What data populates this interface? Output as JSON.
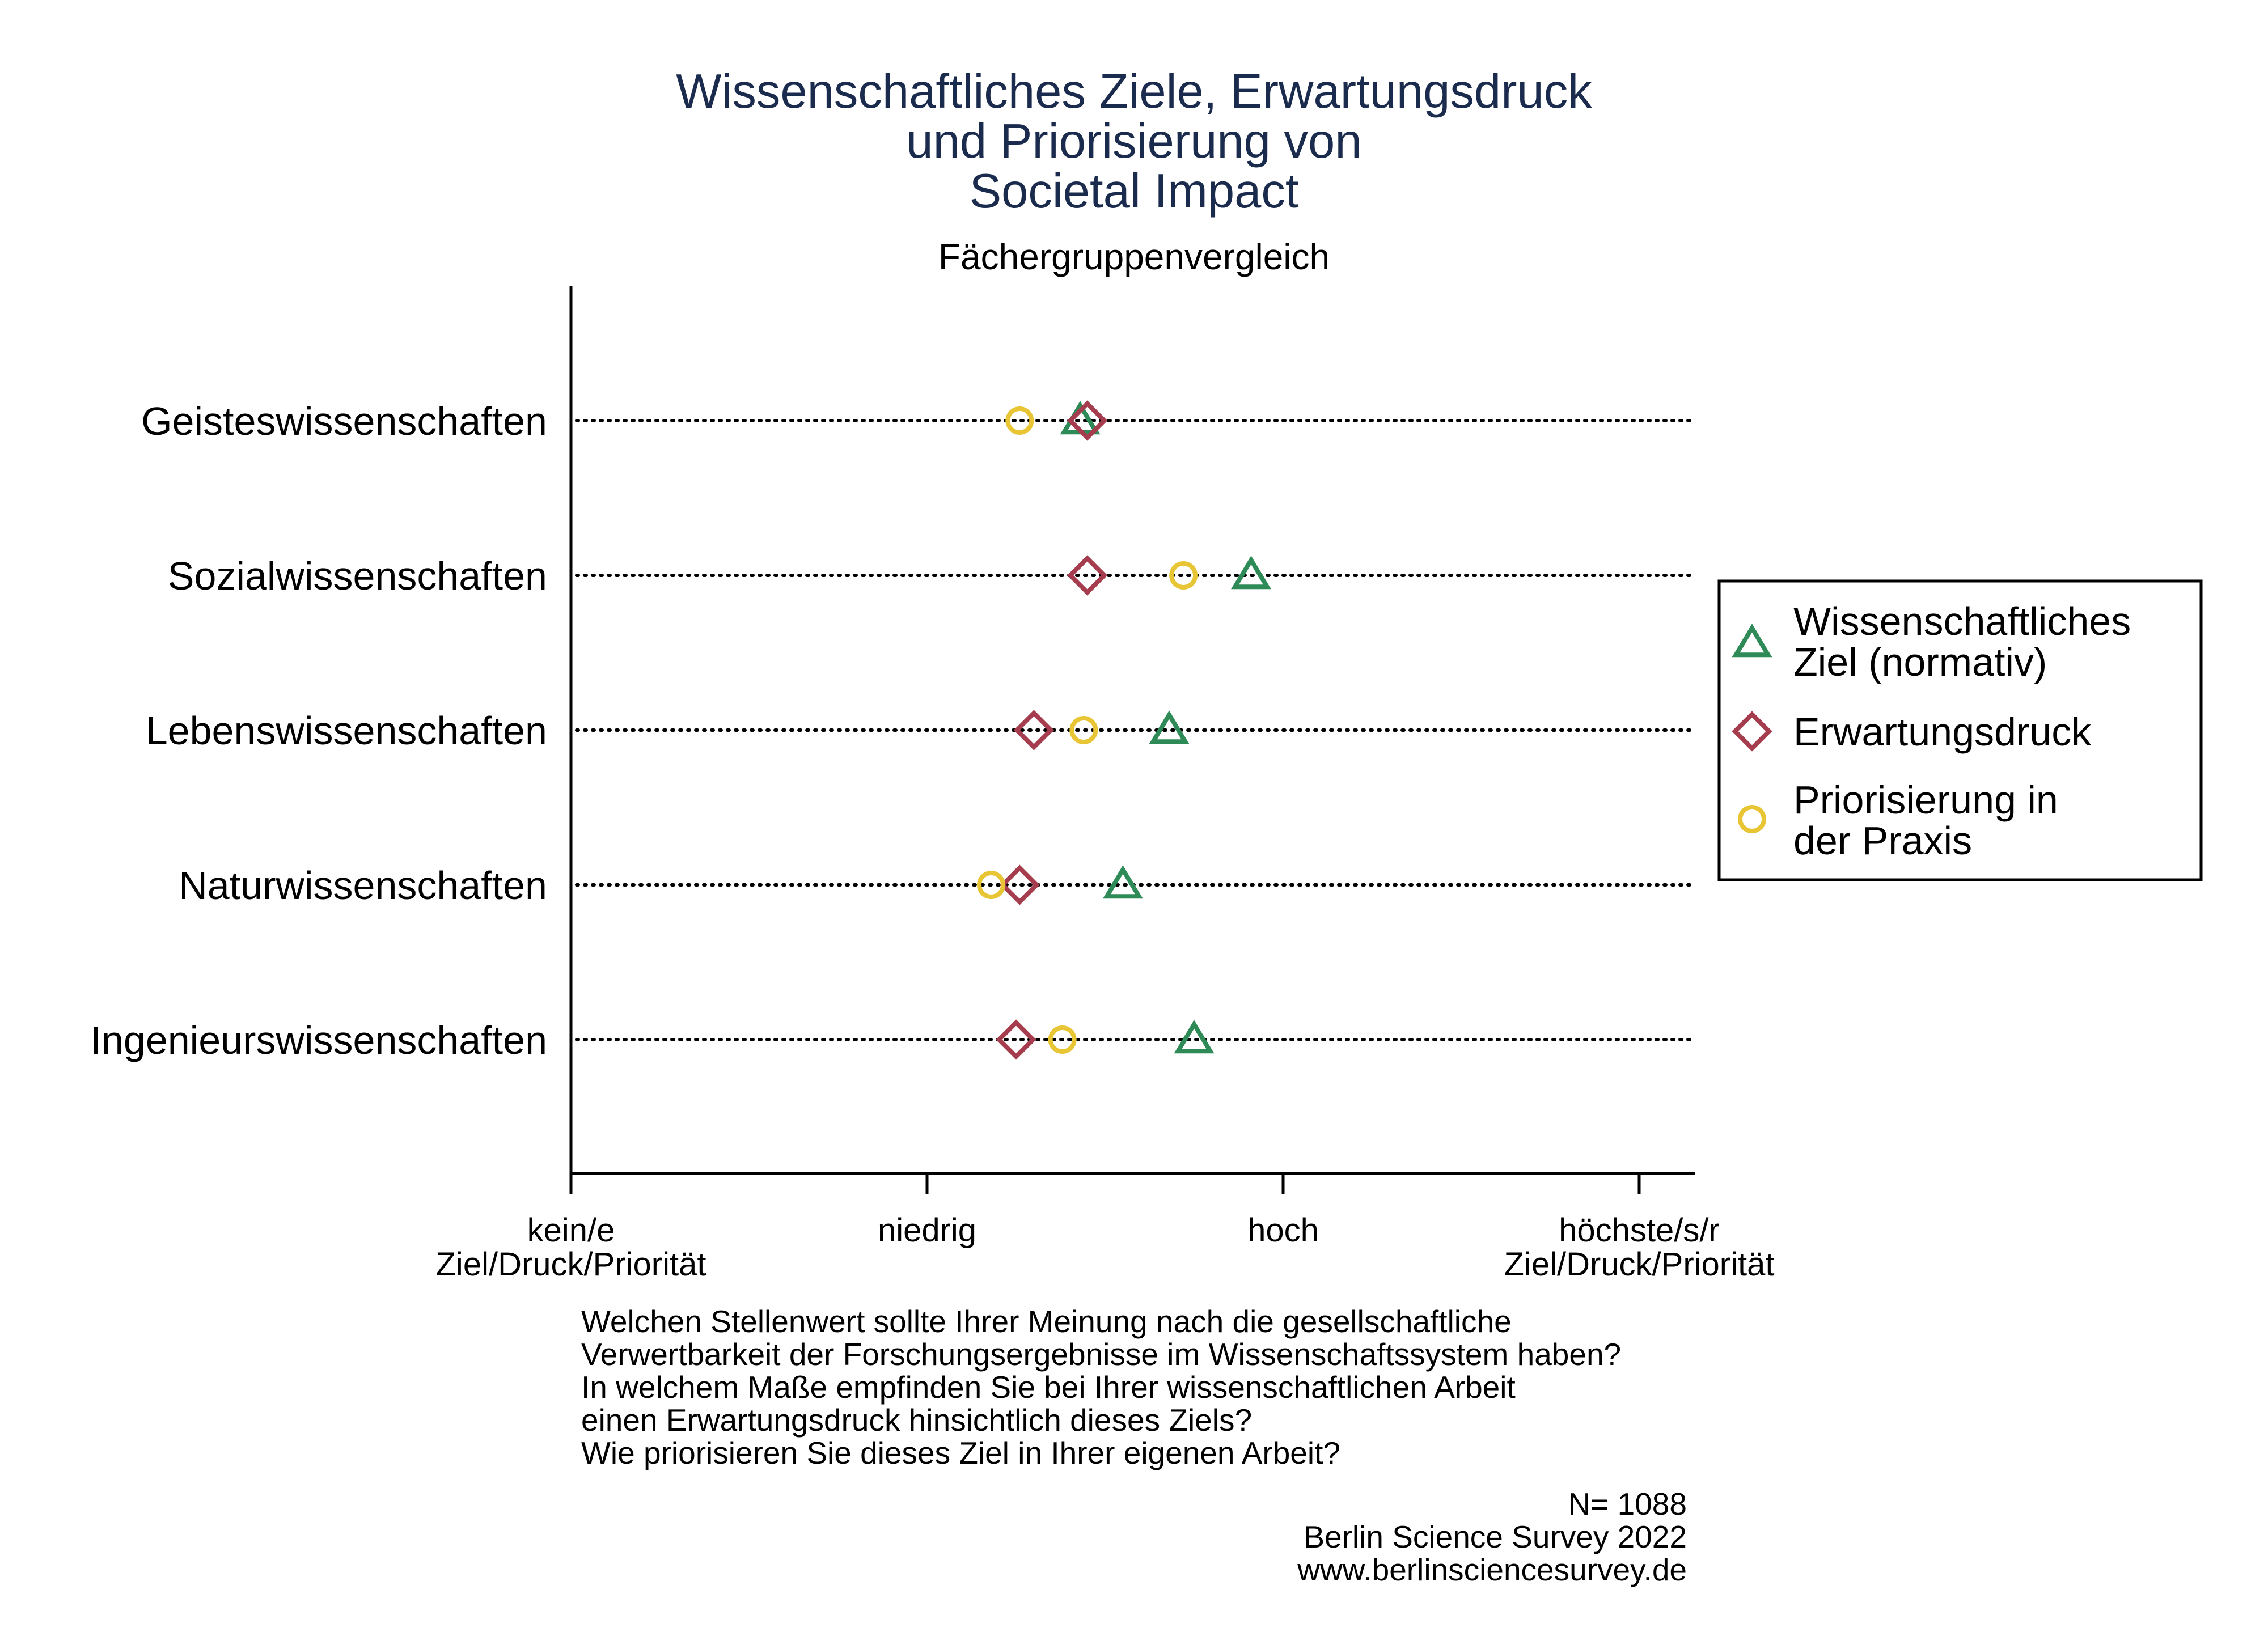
{
  "chart_data": {
    "type": "scatter",
    "title_lines": [
      "Wissenschaftliches Ziele, Erwartungsdruck",
      "und Priorisierung von",
      "Societal Impact"
    ],
    "subtitle": "Fächergruppenvergleich",
    "categories": [
      "Geisteswissenschaften",
      "Sozialwissenschaften",
      "Lebenswissenschaften",
      "Naturwissenschaften",
      "Ingenieurswissenschaften"
    ],
    "x_ticks": [
      {
        "value": 0,
        "lines": [
          "kein/e",
          "Ziel/Druck/Priorität"
        ]
      },
      {
        "value": 1,
        "lines": [
          "niedrig"
        ]
      },
      {
        "value": 2,
        "lines": [
          "hoch"
        ]
      },
      {
        "value": 3,
        "lines": [
          "höchste/s/r",
          "Ziel/Druck/Priorität"
        ]
      }
    ],
    "xlim": [
      0,
      3.16
    ],
    "grid": "dotted horizontal line per category",
    "legend_position": "right",
    "series": [
      {
        "name_lines": [
          "Wissenschaftliches",
          "Ziel (normativ)"
        ],
        "marker": "triangle",
        "color": "#2e8b57",
        "values": [
          1.43,
          1.91,
          1.68,
          1.55,
          1.75
        ]
      },
      {
        "name_lines": [
          "Erwartungsdruck"
        ],
        "marker": "diamond",
        "color": "#a63d4f",
        "values": [
          1.45,
          1.45,
          1.3,
          1.26,
          1.25
        ]
      },
      {
        "name_lines": [
          "Priorisierung in",
          "der Praxis"
        ],
        "marker": "circle",
        "color": "#e8c534",
        "values": [
          1.26,
          1.72,
          1.44,
          1.18,
          1.38
        ]
      }
    ],
    "question_lines": [
      "Welchen Stellenwert sollte Ihrer Meinung nach die gesellschaftliche",
      "Verwertbarkeit der Forschungsergebnisse im Wissenschaftssystem haben?",
      "In welchem Maße empfinden Sie bei Ihrer wissenschaftlichen Arbeit",
      "einen Erwartungsdruck hinsichtlich dieses Ziels?",
      "Wie priorisieren Sie dieses Ziel in Ihrer eigenen Arbeit?"
    ],
    "source_lines": [
      "N= 1088",
      "Berlin Science Survey 2022",
      "www.berlinsciencesurvey.de"
    ]
  }
}
